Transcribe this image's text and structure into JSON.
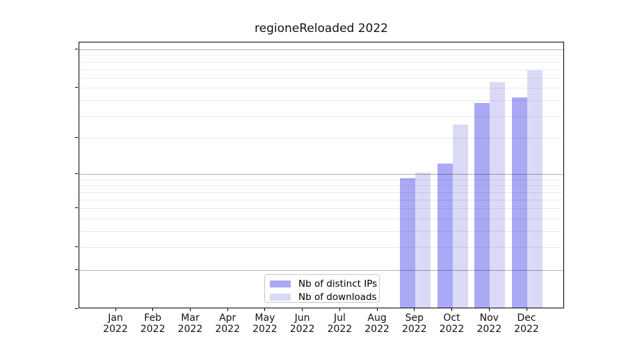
{
  "chart_data": {
    "type": "bar",
    "title": "regioneReloaded 2022",
    "x_tick_labels": [
      [
        "Jan",
        "2022"
      ],
      [
        "Feb",
        "2022"
      ],
      [
        "Mar",
        "2022"
      ],
      [
        "Apr",
        "2022"
      ],
      [
        "May",
        "2022"
      ],
      [
        "Jun",
        "2022"
      ],
      [
        "Jul",
        "2022"
      ],
      [
        "Aug",
        "2022"
      ],
      [
        "Sep",
        "2022"
      ],
      [
        "Oct",
        "2022"
      ],
      [
        "Nov",
        "2022"
      ],
      [
        "Dec",
        "2022"
      ]
    ],
    "series": [
      {
        "name": "Nb of distinct IPs",
        "color": "#a9a9f5",
        "values": [
          0,
          0,
          0,
          0,
          0,
          0,
          0,
          0,
          9,
          12,
          37,
          41
        ]
      },
      {
        "name": "Nb of downloads",
        "color": "#dadaf7",
        "values": [
          0,
          0,
          0,
          0,
          0,
          0,
          0,
          0,
          10,
          25,
          54,
          67
        ]
      }
    ],
    "y_ticks": [
      0,
      1,
      2,
      5,
      10,
      20,
      50,
      100
    ],
    "y_major_gridlines": [
      1,
      10,
      100
    ],
    "y_minor_gridlines": [
      2,
      3,
      4,
      5,
      6,
      7,
      8,
      9,
      20,
      30,
      40,
      50,
      60,
      70,
      80,
      90
    ],
    "y_scale": "log10(1+y)",
    "ylim": [
      0,
      110
    ],
    "grid": "horizontal major+minor, drawn over bars",
    "legend_position": "inside lower-center"
  },
  "colors": {
    "bar_distinct_ips": "#a9a9f5",
    "bar_downloads": "#dadaf7",
    "grid_minor": "#00000014",
    "grid_major": "#00000050",
    "axis_spine": "#000000",
    "text": "#111111",
    "legend_border": "#c8c8c8",
    "background": "#ffffff"
  }
}
